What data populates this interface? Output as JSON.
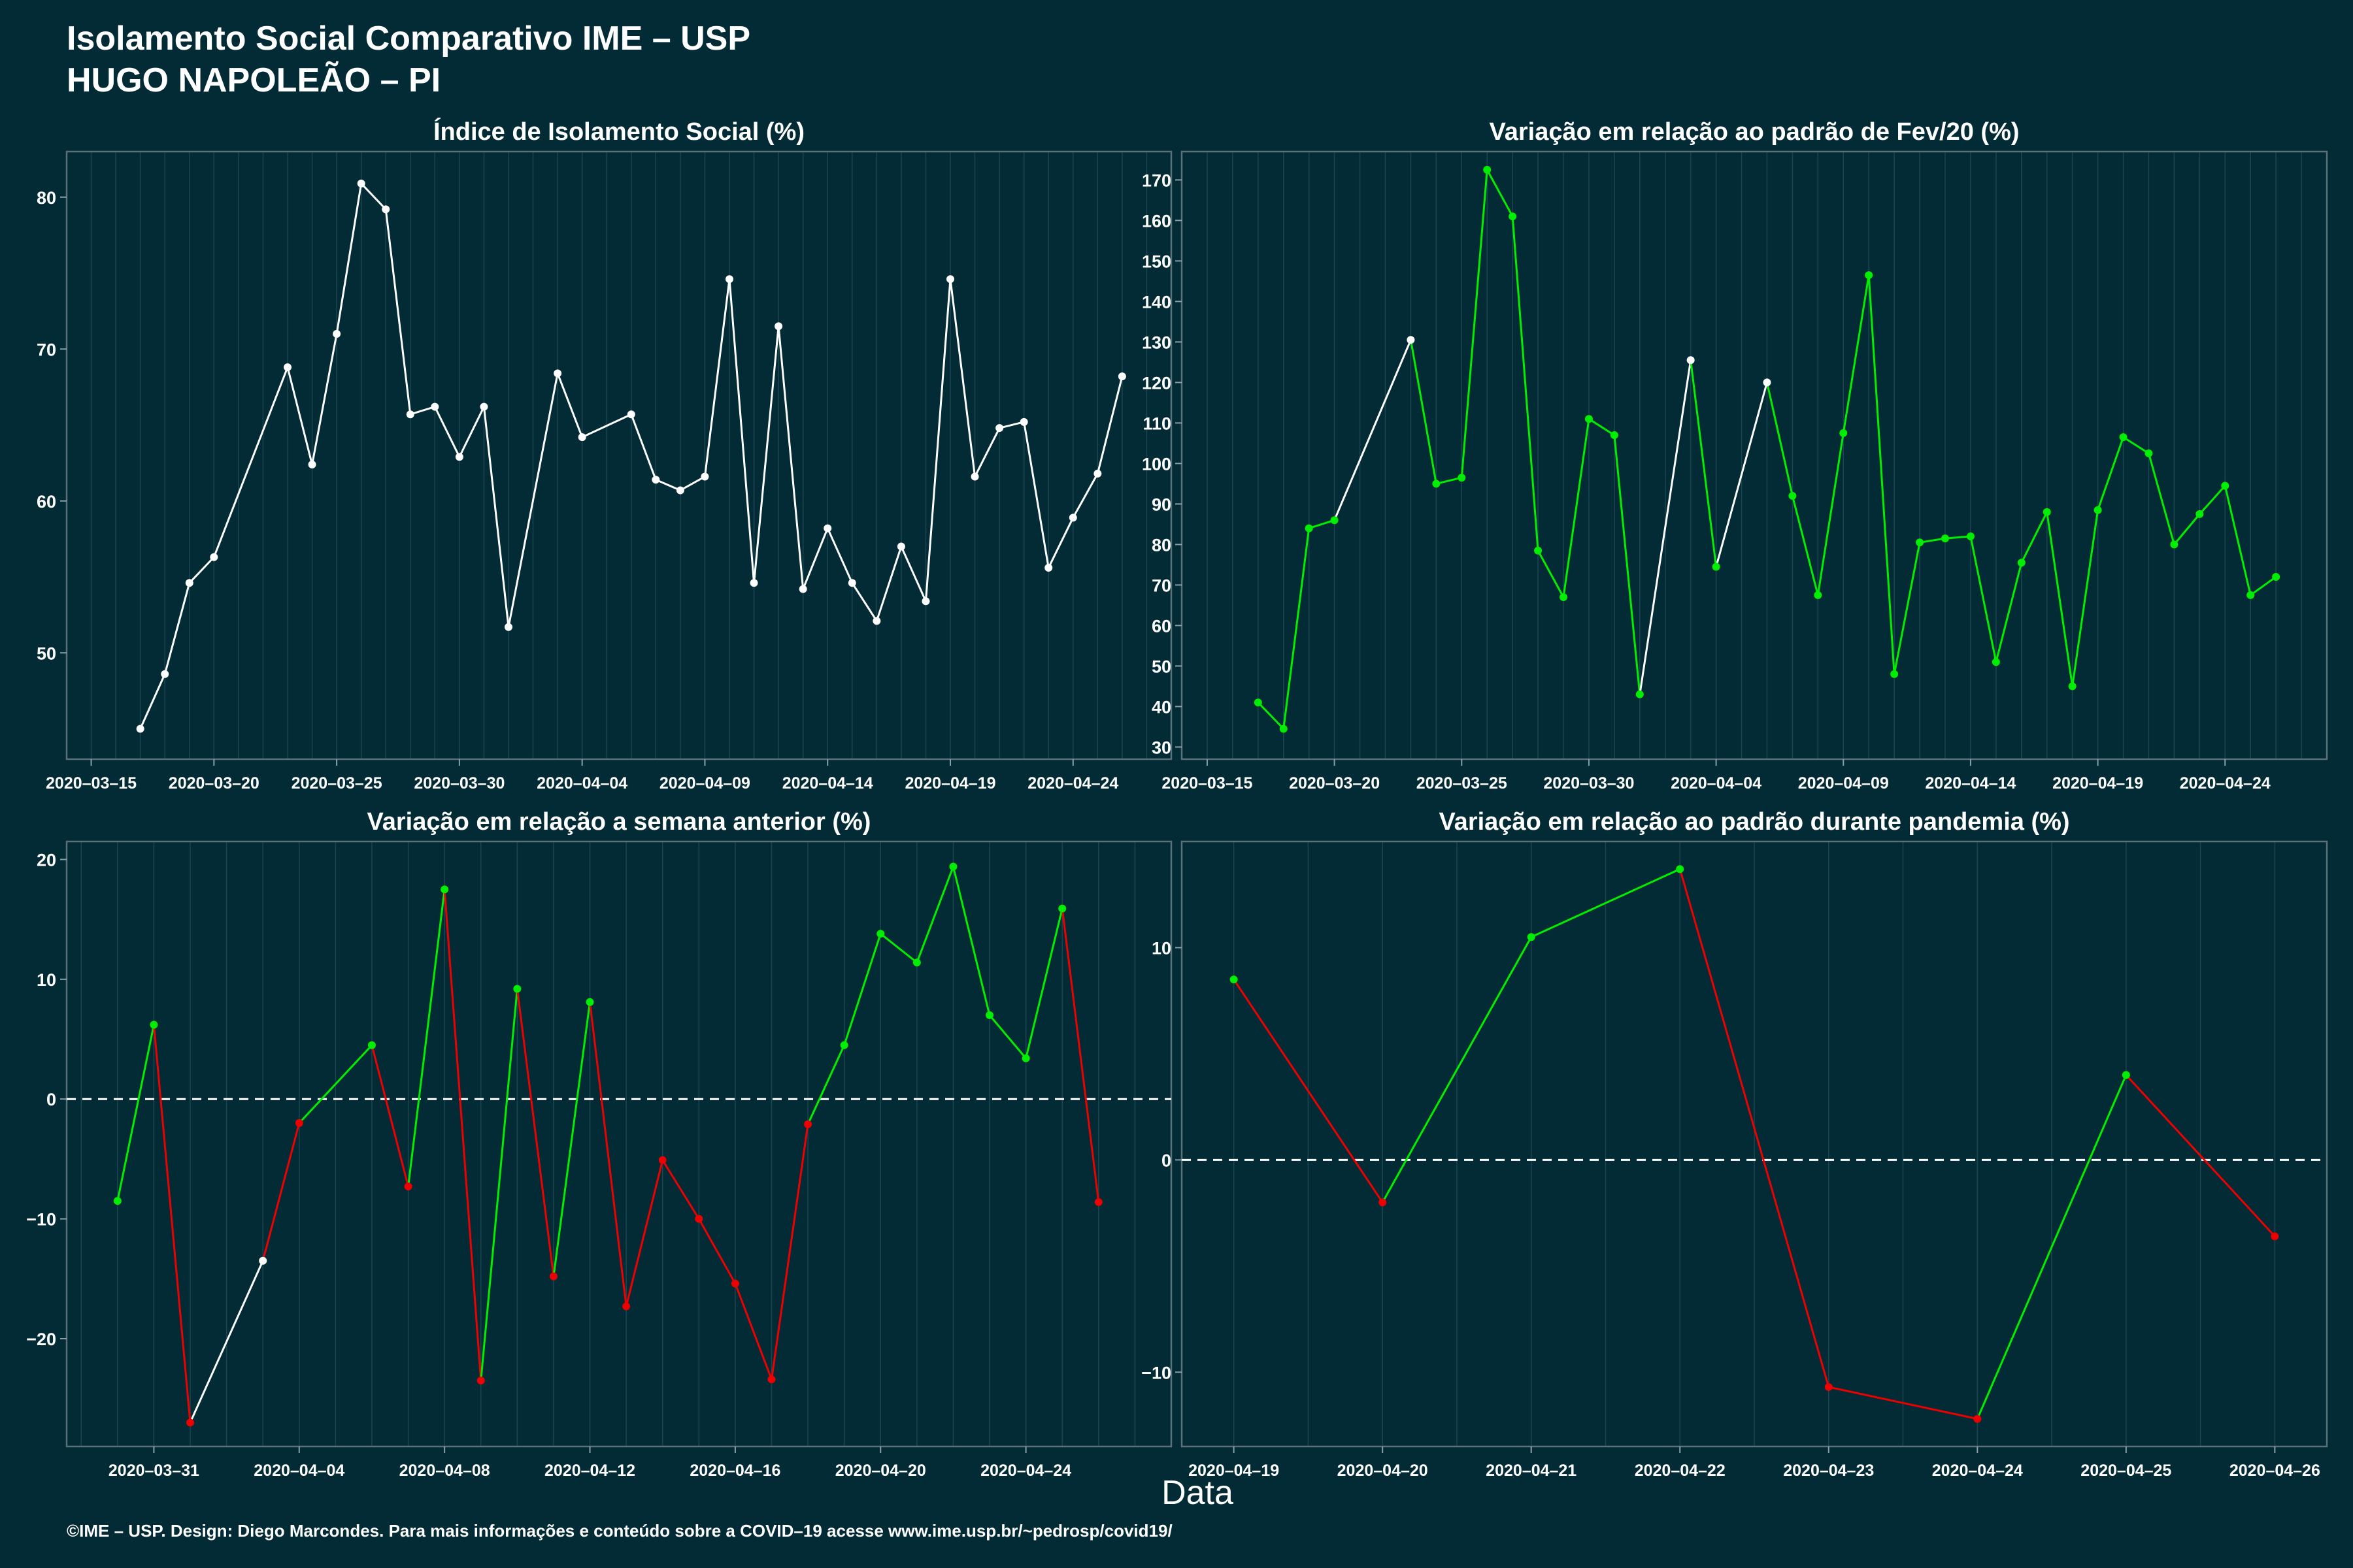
{
  "title_line1": "Isolamento Social Comparativo IME – USP",
  "title_line2": "HUGO NAPOLEÃO – PI",
  "xlabel": "Data",
  "footer": "©IME – USP. Design: Diego Marcondes. Para mais informações e conteúdo sobre a COVID–19 acesse www.ime.usp.br/~pedrosp/covid19/",
  "colors": {
    "background": "#022b36",
    "neutral": "#ffffff",
    "up": "#00ee00",
    "down": "#ee0000"
  },
  "chart_data": [
    {
      "type": "line",
      "title": "Índice de Isolamento Social (%)",
      "ylim": [
        43,
        83
      ],
      "yticks": [
        50,
        60,
        70,
        80
      ],
      "xrange": [
        "2020-03-14",
        "2020-04-28"
      ],
      "xticks": [
        "2020-03-15",
        "2020-03-20",
        "2020-03-25",
        "2020-03-30",
        "2020-04-04",
        "2020-04-09",
        "2020-04-14",
        "2020-04-19",
        "2020-04-24"
      ],
      "x": [
        "2020-03-17",
        "2020-03-18",
        "2020-03-19",
        "2020-03-20",
        "2020-03-23",
        "2020-03-24",
        "2020-03-25",
        "2020-03-26",
        "2020-03-27",
        "2020-03-28",
        "2020-03-29",
        "2020-03-30",
        "2020-03-31",
        "2020-04-01",
        "2020-04-03",
        "2020-04-04",
        "2020-04-06",
        "2020-04-07",
        "2020-04-08",
        "2020-04-09",
        "2020-04-10",
        "2020-04-11",
        "2020-04-12",
        "2020-04-13",
        "2020-04-14",
        "2020-04-15",
        "2020-04-16",
        "2020-04-17",
        "2020-04-18",
        "2020-04-19",
        "2020-04-20",
        "2020-04-21",
        "2020-04-22",
        "2020-04-23",
        "2020-04-24",
        "2020-04-25",
        "2020-04-26"
      ],
      "values": [
        45.0,
        48.6,
        54.6,
        56.3,
        68.8,
        62.4,
        71.0,
        80.9,
        79.2,
        65.7,
        66.2,
        62.9,
        66.2,
        51.7,
        68.4,
        64.2,
        65.7,
        61.4,
        60.7,
        61.6,
        74.6,
        54.6,
        71.5,
        54.2,
        58.2,
        54.6,
        52.1,
        57.0,
        53.4,
        74.6,
        61.6,
        64.8,
        65.2,
        55.6,
        58.9,
        61.8,
        68.2
      ],
      "colors": [
        "n",
        "n",
        "n",
        "n",
        "n",
        "n",
        "n",
        "n",
        "n",
        "n",
        "n",
        "n",
        "n",
        "n",
        "n",
        "n",
        "n",
        "n",
        "n",
        "n",
        "n",
        "n",
        "n",
        "n",
        "n",
        "n",
        "n",
        "n",
        "n",
        "n",
        "n",
        "n",
        "n",
        "n",
        "n",
        "n",
        "n"
      ],
      "baseline": null
    },
    {
      "type": "line",
      "title": "Variação em relação ao padrão de Fev/20 (%)",
      "ylim": [
        27,
        177
      ],
      "yticks": [
        30,
        40,
        50,
        60,
        70,
        80,
        90,
        100,
        110,
        120,
        130,
        140,
        150,
        160,
        170
      ],
      "xrange": [
        "2020-03-14",
        "2020-04-28"
      ],
      "xticks": [
        "2020-03-15",
        "2020-03-20",
        "2020-03-25",
        "2020-03-30",
        "2020-04-04",
        "2020-04-09",
        "2020-04-14",
        "2020-04-19",
        "2020-04-24"
      ],
      "x": [
        "2020-03-17",
        "2020-03-18",
        "2020-03-19",
        "2020-03-20",
        "2020-03-23",
        "2020-03-24",
        "2020-03-25",
        "2020-03-26",
        "2020-03-27",
        "2020-03-28",
        "2020-03-29",
        "2020-03-30",
        "2020-03-31",
        "2020-04-01",
        "2020-04-03",
        "2020-04-04",
        "2020-04-06",
        "2020-04-07",
        "2020-04-08",
        "2020-04-09",
        "2020-04-10",
        "2020-04-11",
        "2020-04-12",
        "2020-04-13",
        "2020-04-14",
        "2020-04-15",
        "2020-04-16",
        "2020-04-17",
        "2020-04-18",
        "2020-04-19",
        "2020-04-20",
        "2020-04-21",
        "2020-04-22",
        "2020-04-23",
        "2020-04-24",
        "2020-04-25",
        "2020-04-26"
      ],
      "values": [
        41,
        34.5,
        84,
        86,
        130.5,
        95,
        96.5,
        172.5,
        161,
        78.5,
        67,
        111,
        107,
        43,
        125.5,
        74.5,
        120,
        92,
        67.5,
        107.5,
        146.5,
        48,
        80.5,
        81.5,
        82,
        51,
        75.5,
        88,
        45,
        88.5,
        106.5,
        102.5,
        80,
        87.5,
        94.5,
        67.5,
        72
      ],
      "colors": [
        "g",
        "g",
        "g",
        "g",
        "n",
        "g",
        "g",
        "g",
        "g",
        "g",
        "g",
        "g",
        "g",
        "g",
        "n",
        "g",
        "n",
        "g",
        "g",
        "g",
        "g",
        "g",
        "g",
        "g",
        "g",
        "g",
        "g",
        "g",
        "g",
        "g",
        "g",
        "g",
        "g",
        "g",
        "g",
        "g",
        "g"
      ],
      "baseline": null
    },
    {
      "type": "line",
      "title": "Variação em relação a semana anterior (%)",
      "ylim": [
        -29,
        21.5
      ],
      "yticks": [
        -20,
        -10,
        0,
        10,
        20
      ],
      "ytick_labels": [
        "−20",
        "−10",
        "0",
        "10",
        "20"
      ],
      "xrange": [
        "2020-03-28.6",
        "2020-04-28"
      ],
      "xticks": [
        "2020-03-31",
        "2020-04-04",
        "2020-04-08",
        "2020-04-12",
        "2020-04-16",
        "2020-04-20",
        "2020-04-24"
      ],
      "x": [
        "2020-03-30",
        "2020-03-31",
        "2020-04-01",
        "2020-04-03",
        "2020-04-04",
        "2020-04-06",
        "2020-04-07",
        "2020-04-08",
        "2020-04-09",
        "2020-04-10",
        "2020-04-11",
        "2020-04-12",
        "2020-04-13",
        "2020-04-14",
        "2020-04-15",
        "2020-04-16",
        "2020-04-17",
        "2020-04-18",
        "2020-04-19",
        "2020-04-20",
        "2020-04-21",
        "2020-04-22",
        "2020-04-23",
        "2020-04-24",
        "2020-04-25",
        "2020-04-26"
      ],
      "values": [
        -8.5,
        6.2,
        -27.0,
        -13.5,
        -2.0,
        4.5,
        -7.3,
        17.5,
        -23.5,
        9.2,
        -14.8,
        8.1,
        -17.3,
        -5.1,
        -10.0,
        -15.4,
        -23.4,
        -2.1,
        4.5,
        13.8,
        11.4,
        19.4,
        7.0,
        3.4,
        15.9,
        -8.6
      ],
      "colors": [
        "g",
        "g",
        "r",
        "n",
        "r",
        "g",
        "r",
        "g",
        "r",
        "g",
        "r",
        "g",
        "r",
        "r",
        "r",
        "r",
        "r",
        "r",
        "g",
        "g",
        "g",
        "g",
        "g",
        "g",
        "g",
        "r"
      ],
      "baseline": 0
    },
    {
      "type": "line",
      "title": "Variação em relação ao padrão durante pandemia (%)",
      "ylim": [
        -13.5,
        15
      ],
      "yticks": [
        -10,
        0,
        10
      ],
      "ytick_labels": [
        "−10",
        "0",
        "10"
      ],
      "xrange": [
        "2020-04-18.65",
        "2020-04-26.35"
      ],
      "xticks": [
        "2020-04-19",
        "2020-04-20",
        "2020-04-21",
        "2020-04-22",
        "2020-04-23",
        "2020-04-24",
        "2020-04-25",
        "2020-04-26"
      ],
      "x": [
        "2020-04-19",
        "2020-04-20",
        "2020-04-21",
        "2020-04-22",
        "2020-04-23",
        "2020-04-24",
        "2020-04-25",
        "2020-04-26"
      ],
      "values": [
        8.5,
        -2.0,
        10.5,
        13.7,
        -10.7,
        -12.2,
        4.0,
        -3.6
      ],
      "colors": [
        "g",
        "r",
        "g",
        "g",
        "r",
        "r",
        "g",
        "r"
      ],
      "baseline": 0
    }
  ]
}
